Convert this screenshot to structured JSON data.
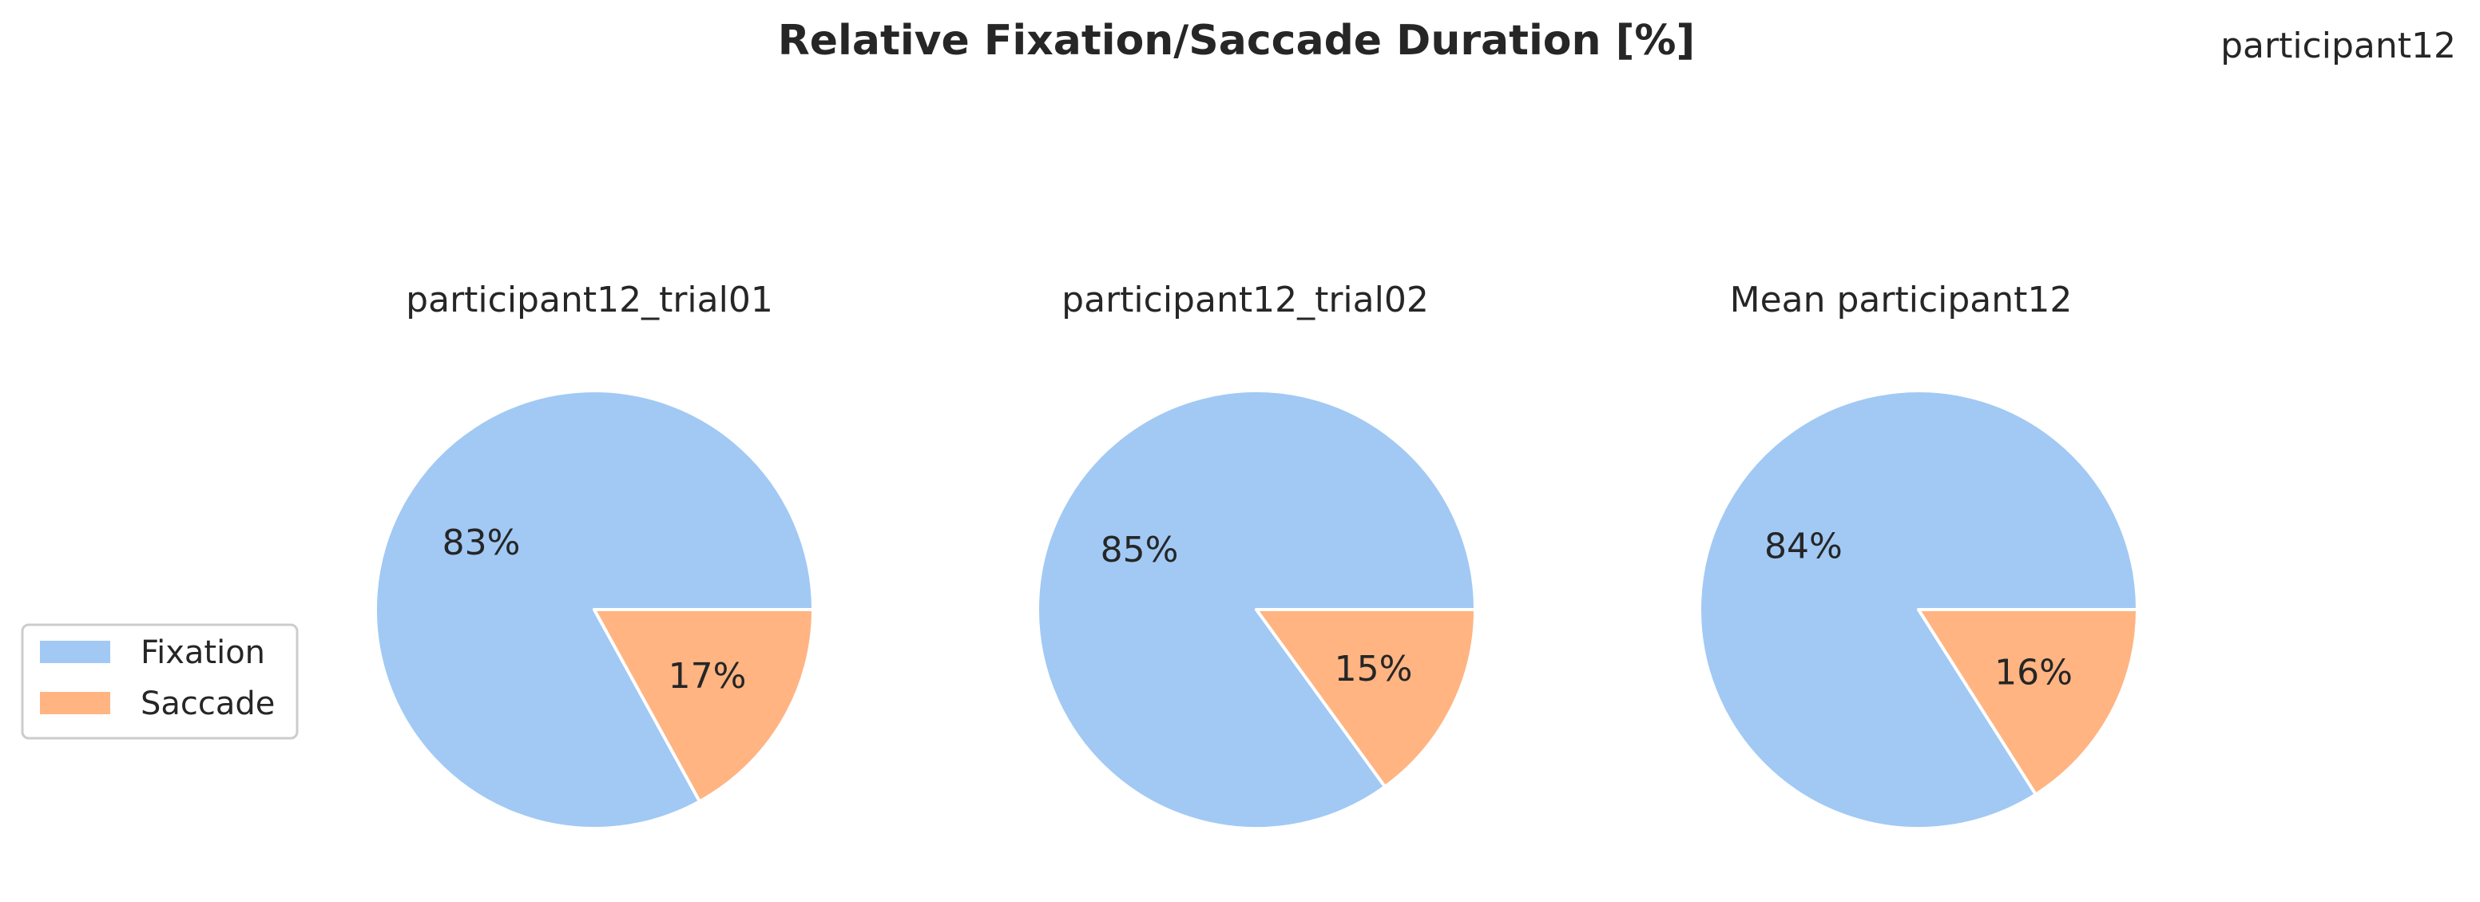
{
  "figure": {
    "suptitle": "Relative Fixation/Saccade Duration [%]",
    "corner_label": "participant12"
  },
  "legend": {
    "placement": "center-left",
    "items": [
      {
        "label": "Fixation",
        "color": "#a1c9f4"
      },
      {
        "label": "Saccade",
        "color": "#ffb482"
      }
    ]
  },
  "chart_data": [
    {
      "type": "pie",
      "title": "participant12_trial01",
      "labels": [
        "Fixation",
        "Saccade"
      ],
      "values": [
        83,
        17
      ],
      "value_labels": [
        "83%",
        "17%"
      ],
      "colors": [
        "#a1c9f4",
        "#ffb482"
      ]
    },
    {
      "type": "pie",
      "title": "participant12_trial02",
      "labels": [
        "Fixation",
        "Saccade"
      ],
      "values": [
        85,
        15
      ],
      "value_labels": [
        "85%",
        "15%"
      ],
      "colors": [
        "#a1c9f4",
        "#ffb482"
      ]
    },
    {
      "type": "pie",
      "title": "Mean participant12",
      "labels": [
        "Fixation",
        "Saccade"
      ],
      "values": [
        84,
        16
      ],
      "value_labels": [
        "84%",
        "16%"
      ],
      "colors": [
        "#a1c9f4",
        "#ffb482"
      ]
    }
  ]
}
